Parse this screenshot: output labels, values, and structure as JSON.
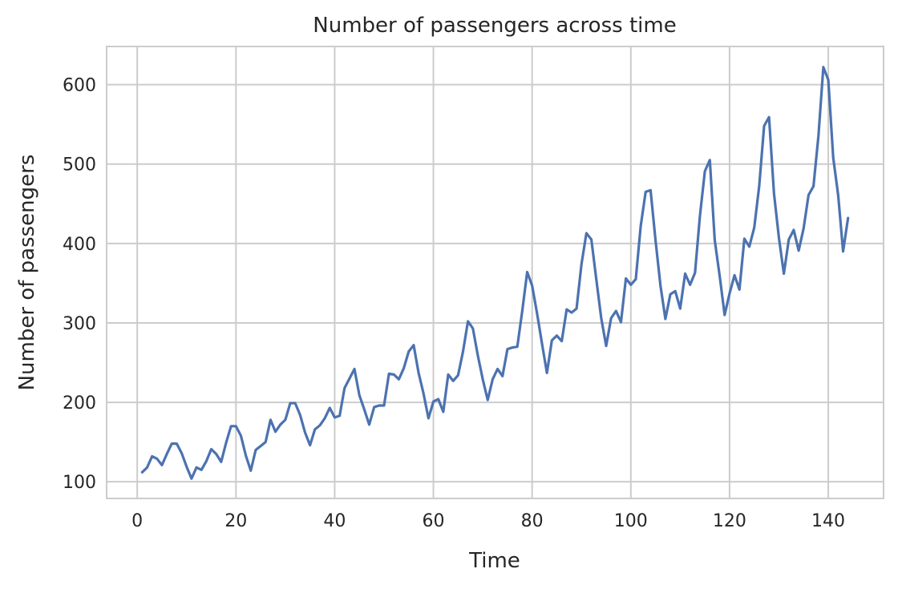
{
  "chart_data": {
    "type": "line",
    "title": "Number of passengers across time",
    "xlabel": "Time",
    "ylabel": "Number of passengers",
    "xlim": [
      -6.2,
      151.2
    ],
    "ylim": [
      79,
      648
    ],
    "xticks": [
      0,
      20,
      40,
      60,
      80,
      100,
      120,
      140
    ],
    "yticks": [
      100,
      200,
      300,
      400,
      500,
      600
    ],
    "grid": true,
    "line_color": "#4c72b0",
    "series": [
      {
        "x": [
          1,
          2,
          3,
          4,
          5,
          6,
          7,
          8,
          9,
          10,
          11,
          12,
          13,
          14,
          15,
          16,
          17,
          18,
          19,
          20,
          21,
          22,
          23,
          24,
          25,
          26,
          27,
          28,
          29,
          30,
          31,
          32,
          33,
          34,
          35,
          36,
          37,
          38,
          39,
          40,
          41,
          42,
          43,
          44,
          45,
          46,
          47,
          48,
          49,
          50,
          51,
          52,
          53,
          54,
          55,
          56,
          57,
          58,
          59,
          60,
          61,
          62,
          63,
          64,
          65,
          66,
          67,
          68,
          69,
          70,
          71,
          72,
          73,
          74,
          75,
          76,
          77,
          78,
          79,
          80,
          81,
          82,
          83,
          84,
          85,
          86,
          87,
          88,
          89,
          90,
          91,
          92,
          93,
          94,
          95,
          96,
          97,
          98,
          99,
          100,
          101,
          102,
          103,
          104,
          105,
          106,
          107,
          108,
          109,
          110,
          111,
          112,
          113,
          114,
          115,
          116,
          117,
          118,
          119,
          120,
          121,
          122,
          123,
          124,
          125,
          126,
          127,
          128,
          129,
          130,
          131,
          132,
          133,
          134,
          135,
          136,
          137,
          138,
          139,
          140,
          141,
          142,
          143,
          144
        ],
        "values": [
          112,
          118,
          132,
          129,
          121,
          135,
          148,
          148,
          136,
          119,
          104,
          118,
          115,
          126,
          141,
          135,
          125,
          149,
          170,
          170,
          158,
          133,
          114,
          140,
          145,
          150,
          178,
          163,
          172,
          178,
          199,
          199,
          184,
          162,
          146,
          166,
          171,
          180,
          193,
          181,
          183,
          218,
          230,
          242,
          209,
          191,
          172,
          194,
          196,
          196,
          236,
          235,
          229,
          243,
          264,
          272,
          237,
          211,
          180,
          201,
          204,
          188,
          235,
          227,
          234,
          264,
          302,
          293,
          259,
          229,
          203,
          229,
          242,
          233,
          267,
          269,
          270,
          315,
          364,
          347,
          312,
          274,
          237,
          278,
          284,
          277,
          317,
          313,
          318,
          374,
          413,
          405,
          355,
          306,
          271,
          306,
          315,
          301,
          356,
          348,
          355,
          422,
          465,
          467,
          404,
          347,
          305,
          336,
          340,
          318,
          362,
          348,
          363,
          435,
          491,
          505,
          404,
          359,
          310,
          337,
          360,
          342,
          406,
          396,
          420,
          472,
          548,
          559,
          463,
          407,
          362,
          405,
          417,
          391,
          419,
          461,
          472,
          535,
          622,
          606,
          508,
          461,
          390,
          432
        ]
      }
    ]
  }
}
